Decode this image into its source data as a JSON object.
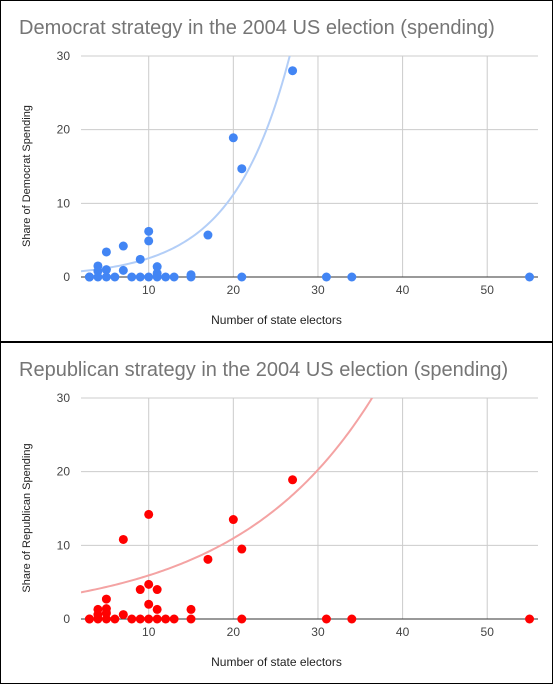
{
  "colors": {
    "democrat_points": "#4285f4",
    "democrat_trend": "#b3cef7",
    "republican_points": "#ff0000",
    "republican_trend": "#f4a3a3",
    "grid": "#cccccc",
    "axis": "#333333"
  },
  "chart_data": [
    {
      "type": "scatter",
      "title": "Democrat strategy in the 2004 US election (spending)",
      "xlabel": "Number of state electors",
      "ylabel": "Share of Democrat Spending",
      "xlim": [
        2,
        56
      ],
      "ylim": [
        0,
        30
      ],
      "x_ticks": [
        10,
        20,
        30,
        40,
        50
      ],
      "y_ticks": [
        0,
        10,
        20,
        30
      ],
      "grid": true,
      "legend": "none",
      "trendline": {
        "type": "exponential",
        "a": 0.58,
        "b": 0.148
      },
      "points": [
        {
          "x": 3,
          "y": 0
        },
        {
          "x": 3,
          "y": 0
        },
        {
          "x": 3,
          "y": 0
        },
        {
          "x": 4,
          "y": 1.5
        },
        {
          "x": 4,
          "y": 0.8
        },
        {
          "x": 4,
          "y": 0
        },
        {
          "x": 5,
          "y": 3.4
        },
        {
          "x": 5,
          "y": 1.0
        },
        {
          "x": 5,
          "y": 0
        },
        {
          "x": 6,
          "y": 0
        },
        {
          "x": 7,
          "y": 4.2
        },
        {
          "x": 7,
          "y": 0.9
        },
        {
          "x": 8,
          "y": 0
        },
        {
          "x": 9,
          "y": 2.4
        },
        {
          "x": 9,
          "y": 0
        },
        {
          "x": 10,
          "y": 6.2
        },
        {
          "x": 10,
          "y": 4.9
        },
        {
          "x": 10,
          "y": 0
        },
        {
          "x": 11,
          "y": 1.4
        },
        {
          "x": 11,
          "y": 0.5
        },
        {
          "x": 11,
          "y": 0
        },
        {
          "x": 12,
          "y": 0
        },
        {
          "x": 13,
          "y": 0
        },
        {
          "x": 15,
          "y": 0.3
        },
        {
          "x": 15,
          "y": 0
        },
        {
          "x": 17,
          "y": 5.7
        },
        {
          "x": 20,
          "y": 18.9
        },
        {
          "x": 21,
          "y": 14.7
        },
        {
          "x": 21,
          "y": 0
        },
        {
          "x": 27,
          "y": 28.0
        },
        {
          "x": 31,
          "y": 0
        },
        {
          "x": 34,
          "y": 0
        },
        {
          "x": 55,
          "y": 0
        }
      ]
    },
    {
      "type": "scatter",
      "title": "Republican strategy in the 2004 US election (spending)",
      "xlabel": "Number of state electors",
      "ylabel": "Share of Republican Spending",
      "xlim": [
        2,
        56
      ],
      "ylim": [
        0,
        30
      ],
      "x_ticks": [
        10,
        20,
        30,
        40,
        50
      ],
      "y_ticks": [
        0,
        10,
        20,
        30
      ],
      "grid": true,
      "legend": "none",
      "trendline": {
        "type": "exponential",
        "a": 3.2,
        "b": 0.0615
      },
      "points": [
        {
          "x": 3,
          "y": 0
        },
        {
          "x": 3,
          "y": 0
        },
        {
          "x": 4,
          "y": 1.3
        },
        {
          "x": 4,
          "y": 0.6
        },
        {
          "x": 4,
          "y": 0
        },
        {
          "x": 5,
          "y": 2.7
        },
        {
          "x": 5,
          "y": 1.4
        },
        {
          "x": 5,
          "y": 0.8
        },
        {
          "x": 5,
          "y": 0
        },
        {
          "x": 6,
          "y": 0
        },
        {
          "x": 7,
          "y": 10.8
        },
        {
          "x": 7,
          "y": 0.6
        },
        {
          "x": 8,
          "y": 0
        },
        {
          "x": 9,
          "y": 4.0
        },
        {
          "x": 9,
          "y": 0
        },
        {
          "x": 10,
          "y": 14.2
        },
        {
          "x": 10,
          "y": 4.7
        },
        {
          "x": 10,
          "y": 2.0
        },
        {
          "x": 10,
          "y": 0
        },
        {
          "x": 11,
          "y": 4.0
        },
        {
          "x": 11,
          "y": 1.3
        },
        {
          "x": 11,
          "y": 0
        },
        {
          "x": 12,
          "y": 0
        },
        {
          "x": 13,
          "y": 0
        },
        {
          "x": 15,
          "y": 1.3
        },
        {
          "x": 15,
          "y": 0
        },
        {
          "x": 17,
          "y": 8.1
        },
        {
          "x": 20,
          "y": 13.5
        },
        {
          "x": 21,
          "y": 9.5
        },
        {
          "x": 21,
          "y": 0
        },
        {
          "x": 27,
          "y": 18.9
        },
        {
          "x": 31,
          "y": 0
        },
        {
          "x": 34,
          "y": 0
        },
        {
          "x": 55,
          "y": 0
        }
      ]
    }
  ]
}
